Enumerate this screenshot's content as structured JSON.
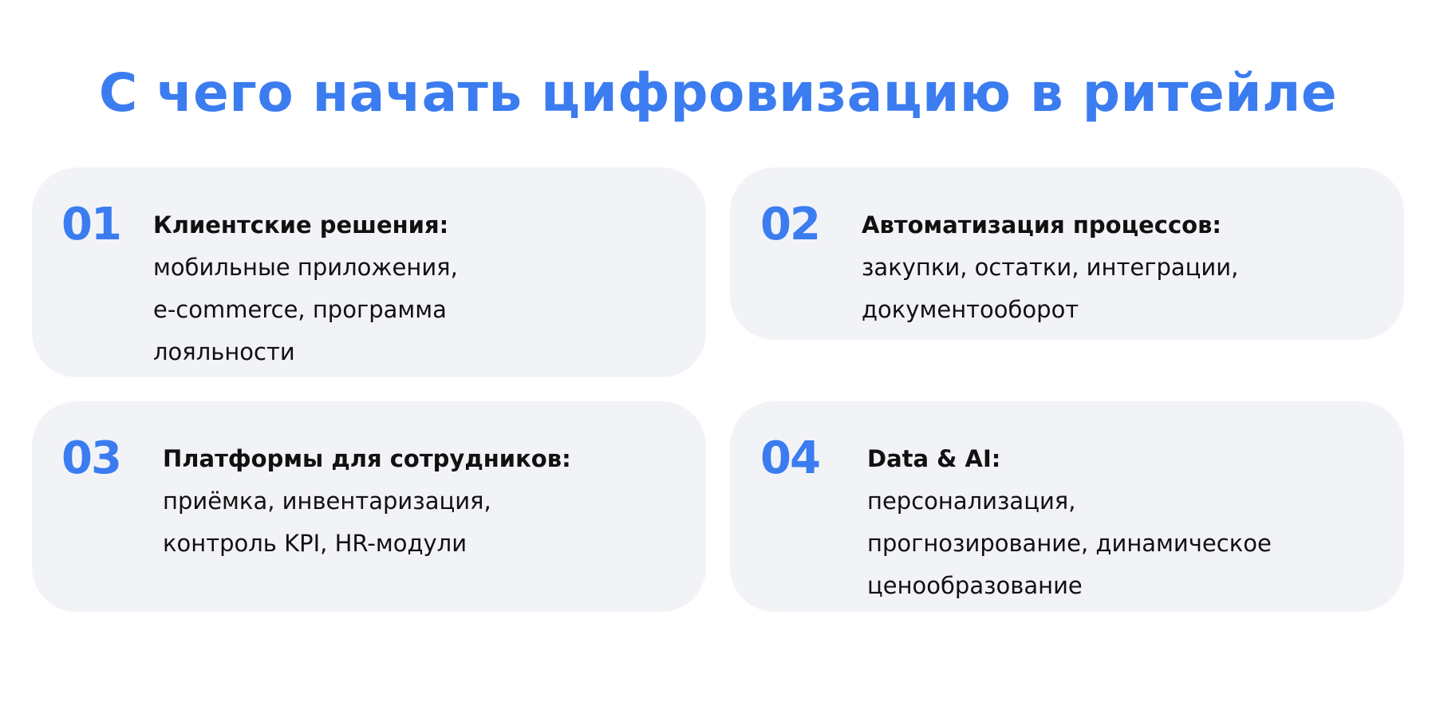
{
  "title": "С чего начать цифровизацию в ритейле",
  "accent_color": "#3b7cf0",
  "cards": [
    {
      "number": "01",
      "heading": "Клиентские решения:",
      "body": "мобильные приложения,\ne-commerce, программа\nлояльности"
    },
    {
      "number": "02",
      "heading": "Автоматизация процессов:",
      "body": "закупки, остатки, интеграции,\nдокументооборот"
    },
    {
      "number": "03",
      "heading": "Платформы для сотрудников:",
      "body": "приёмка, инвентаризация,\nконтроль KPI, HR-модули"
    },
    {
      "number": "04",
      "heading": "Data & AI:",
      "body": "персонализация,\nпрогнозирование, динамическое\nценообразование"
    }
  ]
}
